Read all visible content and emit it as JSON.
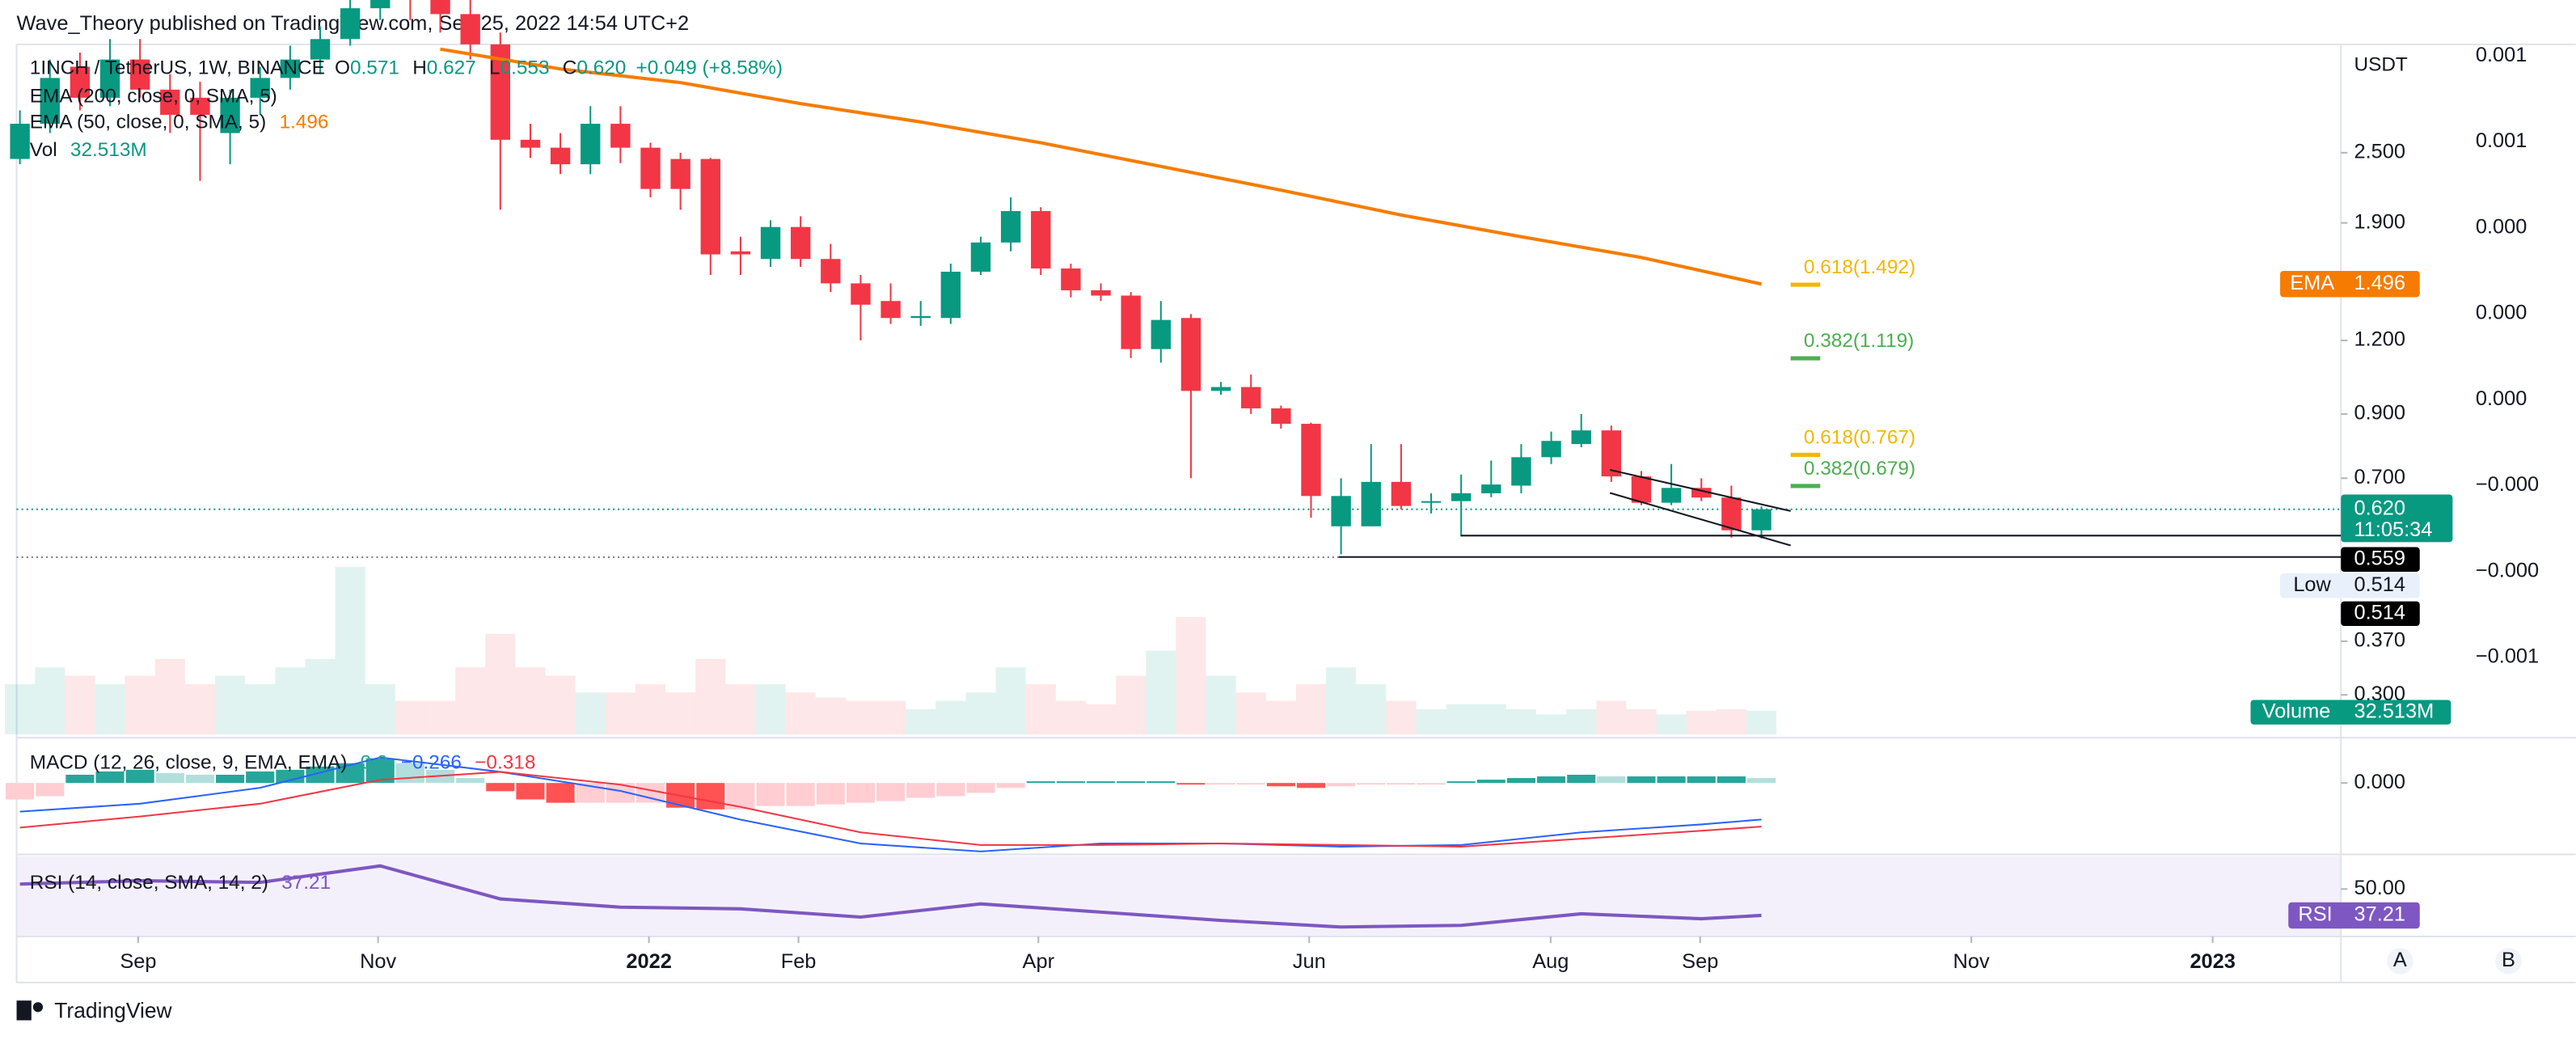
{
  "header": {
    "published": "Wave_Theory published on TradingView.com, Sep 25, 2022 14:54 UTC+2",
    "brand": "TradingView"
  },
  "legend": {
    "symbol": "1INCH / TetherUS, 1W, BINANCE",
    "o_label": "O",
    "open": "0.571",
    "h_label": "H",
    "high": "0.627",
    "l_label": "L",
    "low": "0.553",
    "c_label": "C",
    "close": "0.620",
    "change": "+0.049 (+8.58%)",
    "ema200": "EMA (200, close, 0, SMA, 5)",
    "ema50": "EMA (50, close, 0, SMA, 5)",
    "ema50_value": "1.496",
    "vol": "Vol",
    "vol_value": "32.513M"
  },
  "chart_data": {
    "type": "candlestick",
    "currency": "USDT",
    "log_scale": true,
    "xlim": [
      -0.11,
      77.3
    ],
    "ylim": [
      0.257,
      3.82
    ],
    "yticks": [
      {
        "value": 2.5,
        "label": "2.500"
      },
      {
        "value": 1.9,
        "label": "1.900"
      },
      {
        "value": 1.2,
        "label": "1.200"
      },
      {
        "value": 0.9,
        "label": "0.900"
      },
      {
        "value": 0.7,
        "label": "0.700"
      },
      {
        "value": 0.37,
        "label": "0.370"
      },
      {
        "value": 0.3,
        "label": "0.300"
      }
    ],
    "xticks": [
      {
        "value": 3.94,
        "label": "Sep"
      },
      {
        "value": 11.93,
        "label": "Nov"
      },
      {
        "value": 20.95,
        "label": "2022"
      },
      {
        "value": 25.93,
        "label": "Feb"
      },
      {
        "value": 33.92,
        "label": "Apr"
      },
      {
        "value": 42.94,
        "label": "Jun"
      },
      {
        "value": 50.98,
        "label": "Aug"
      },
      {
        "value": 55.96,
        "label": "Sep"
      },
      {
        "value": 64.99,
        "label": "Nov"
      },
      {
        "value": 73.03,
        "label": "2023"
      }
    ],
    "up_color": "#089981",
    "down_color": "#f23645",
    "open": [
      2.44,
      2.8,
      3.5,
      3.1,
      3.6,
      3.2,
      3.1,
      2.7,
      3.1,
      3.35,
      3.6,
      3.9,
      4.4,
      5.0,
      4.6,
      4.3,
      3.82,
      2.63,
      2.55,
      2.39,
      2.8,
      2.55,
      2.44,
      2.44,
      1.7,
      1.65,
      1.87,
      1.65,
      1.5,
      1.4,
      1.31,
      1.31,
      1.57,
      1.76,
      1.99,
      1.59,
      1.46,
      1.43,
      1.16,
      1.31,
      0.985,
      1.0,
      0.92,
      0.866,
      0.58,
      0.58,
      0.69,
      0.636,
      0.64,
      0.66,
      0.68,
      0.76,
      0.8,
      0.844,
      0.705,
      0.636,
      0.674,
      0.649,
      0.571
    ],
    "high": [
      2.95,
      3.6,
      3.7,
      3.9,
      3.9,
      3.4,
      3.3,
      3.2,
      3.5,
      3.8,
      4.1,
      4.8,
      5.5,
      5.3,
      5.0,
      4.6,
      4.0,
      2.8,
      2.7,
      3.0,
      3.0,
      2.6,
      2.5,
      2.45,
      1.8,
      1.92,
      1.95,
      1.75,
      1.55,
      1.5,
      1.4,
      1.62,
      1.8,
      2.1,
      2.02,
      1.62,
      1.5,
      1.45,
      1.4,
      1.33,
      1.02,
      1.05,
      0.93,
      0.87,
      0.7,
      0.8,
      0.8,
      0.66,
      0.71,
      0.75,
      0.8,
      0.84,
      0.9,
      0.86,
      0.72,
      0.74,
      0.7,
      0.68,
      0.627
    ],
    "low": [
      2.39,
      2.7,
      2.95,
      3.0,
      3.1,
      2.7,
      2.24,
      2.39,
      2.9,
      3.2,
      3.4,
      3.8,
      4.2,
      4.2,
      4.0,
      3.6,
      2.0,
      2.45,
      2.3,
      2.3,
      2.4,
      2.1,
      2.0,
      1.55,
      1.55,
      1.6,
      1.6,
      1.45,
      1.2,
      1.28,
      1.27,
      1.28,
      1.55,
      1.7,
      1.55,
      1.42,
      1.4,
      1.12,
      1.1,
      0.7,
      0.97,
      0.9,
      0.85,
      0.6,
      0.52,
      0.58,
      0.62,
      0.61,
      0.56,
      0.65,
      0.66,
      0.74,
      0.79,
      0.69,
      0.63,
      0.63,
      0.64,
      0.555,
      0.553
    ],
    "close": [
      2.8,
      3.35,
      3.1,
      3.6,
      3.2,
      2.9,
      2.9,
      3.1,
      3.35,
      3.6,
      3.9,
      4.4,
      5.0,
      4.6,
      4.3,
      3.82,
      2.63,
      2.55,
      2.39,
      2.8,
      2.55,
      2.17,
      2.17,
      1.68,
      1.68,
      1.87,
      1.65,
      1.5,
      1.38,
      1.31,
      1.32,
      1.57,
      1.76,
      1.99,
      1.59,
      1.46,
      1.43,
      1.16,
      1.3,
      0.985,
      1.0,
      0.92,
      0.866,
      0.653,
      0.653,
      0.69,
      0.628,
      0.64,
      0.66,
      0.683,
      0.76,
      0.81,
      0.844,
      0.705,
      0.636,
      0.674,
      0.649,
      0.571,
      0.62
    ],
    "ema": {
      "name": "EMA",
      "color": "#f57c00",
      "x": [
        14,
        18,
        22,
        26,
        30,
        34,
        38,
        42,
        46,
        50,
        54,
        58
      ],
      "values": [
        3.75,
        3.47,
        3.29,
        3.03,
        2.82,
        2.6,
        2.37,
        2.16,
        1.96,
        1.8,
        1.66,
        1.496
      ],
      "label": "1.496"
    },
    "fib_levels": [
      {
        "label": "0.618(1.492)",
        "value": 1.492,
        "color": "#f2b705"
      },
      {
        "label": "0.382(1.119)",
        "value": 1.119,
        "color": "#4caf50"
      },
      {
        "label": "0.618(0.767)",
        "value": 0.767,
        "color": "#f2b705"
      },
      {
        "label": "0.382(0.679)",
        "value": 0.679,
        "color": "#4caf50"
      }
    ],
    "last_price": {
      "value": 0.62,
      "label": "0.620",
      "countdown": "11:05:34"
    },
    "levels": [
      {
        "value": 0.559,
        "label": "0.559"
      },
      {
        "value": 0.514,
        "label": "0.514"
      }
    ],
    "low_marker": {
      "name": "Low",
      "label": "0.514"
    },
    "volume": {
      "name": "Volume",
      "label": "32.513M",
      "values": [
        69,
        92,
        80.5,
        69,
        80.5,
        103.5,
        69,
        80.5,
        69,
        92,
        103.5,
        230,
        69,
        46,
        46,
        92,
        138,
        92,
        80.5,
        57.5,
        57.5,
        69,
        57.5,
        103.5,
        69,
        69,
        57.5,
        50.6,
        46,
        46,
        34.5,
        46,
        57.5,
        92,
        69,
        46,
        41.4,
        80.5,
        115,
        161,
        80.5,
        57.5,
        46,
        69,
        92,
        69,
        46,
        34.5,
        41.4,
        41.4,
        34.5,
        27.6,
        34.5,
        46,
        34.5,
        27.6,
        32.2,
        34.5,
        32.513
      ]
    },
    "axis2_labels": [
      "0.001",
      "0.001",
      "0.000",
      "0.000",
      "0.000",
      "−0.000",
      "−0.000",
      "−0.001"
    ],
    "buttons": [
      "A",
      "B"
    ]
  },
  "macd": {
    "title": "MACD (12, 26, close, 9, EMA, EMA)",
    "hist_text": "0.0",
    "macd_text": "−0.266",
    "signal_text": "−0.318",
    "ylim": [
      -0.52,
      0.33
    ],
    "yticks": [
      {
        "value": 0,
        "label": "0.000"
      }
    ],
    "histogram": [
      -0.12,
      -0.096,
      0.06,
      0.084,
      0.096,
      0.072,
      0.06,
      0.06,
      0.084,
      0.096,
      0.12,
      0.144,
      0.18,
      0.144,
      0.096,
      0.036,
      -0.06,
      -0.12,
      -0.144,
      -0.144,
      -0.144,
      -0.144,
      -0.18,
      -0.192,
      -0.192,
      -0.168,
      -0.168,
      -0.156,
      -0.144,
      -0.132,
      -0.108,
      -0.096,
      -0.072,
      -0.036,
      0.012,
      0.012,
      0.012,
      0.012,
      0.012,
      -0.012,
      -0.012,
      -0.012,
      -0.024,
      -0.036,
      -0.024,
      -0.012,
      -0.012,
      -0.012,
      0.012,
      0.024,
      0.036,
      0.048,
      0.06,
      0.048,
      0.048,
      0.048,
      0.048,
      0.048,
      0.036
    ],
    "x": [
      0,
      4,
      8,
      12,
      16,
      20,
      24,
      28,
      32,
      36,
      40,
      44,
      48,
      52,
      56,
      58
    ],
    "macd": [
      -0.209,
      -0.151,
      -0.035,
      0.186,
      0.081,
      -0.058,
      -0.267,
      -0.441,
      -0.499,
      -0.441,
      -0.441,
      -0.464,
      -0.452,
      -0.36,
      -0.302,
      -0.266
    ],
    "signal": [
      -0.325,
      -0.244,
      -0.151,
      0.023,
      0.081,
      -0.012,
      -0.174,
      -0.36,
      -0.452,
      -0.452,
      -0.441,
      -0.452,
      -0.464,
      -0.406,
      -0.348,
      -0.318
    ],
    "macd_color": "#2962ff",
    "signal_color": "#f23645"
  },
  "rsi": {
    "title": "RSI (14, close, SMA, 14, 2)",
    "value_text": "37.21",
    "badge": "RSI",
    "color": "#7e57c2",
    "ylim": [
      27,
      66
    ],
    "yticks": [
      {
        "value": 50,
        "label": "50.00"
      }
    ],
    "x": [
      0,
      4,
      8,
      12,
      16,
      20,
      24,
      28,
      32,
      36,
      40,
      44,
      48,
      52,
      56,
      58
    ],
    "values": [
      52.4,
      54.0,
      53.2,
      61.2,
      45.2,
      41.2,
      40.4,
      36.4,
      42.8,
      38.8,
      34.8,
      31.6,
      32.4,
      38.0,
      35.6,
      37.21
    ]
  }
}
